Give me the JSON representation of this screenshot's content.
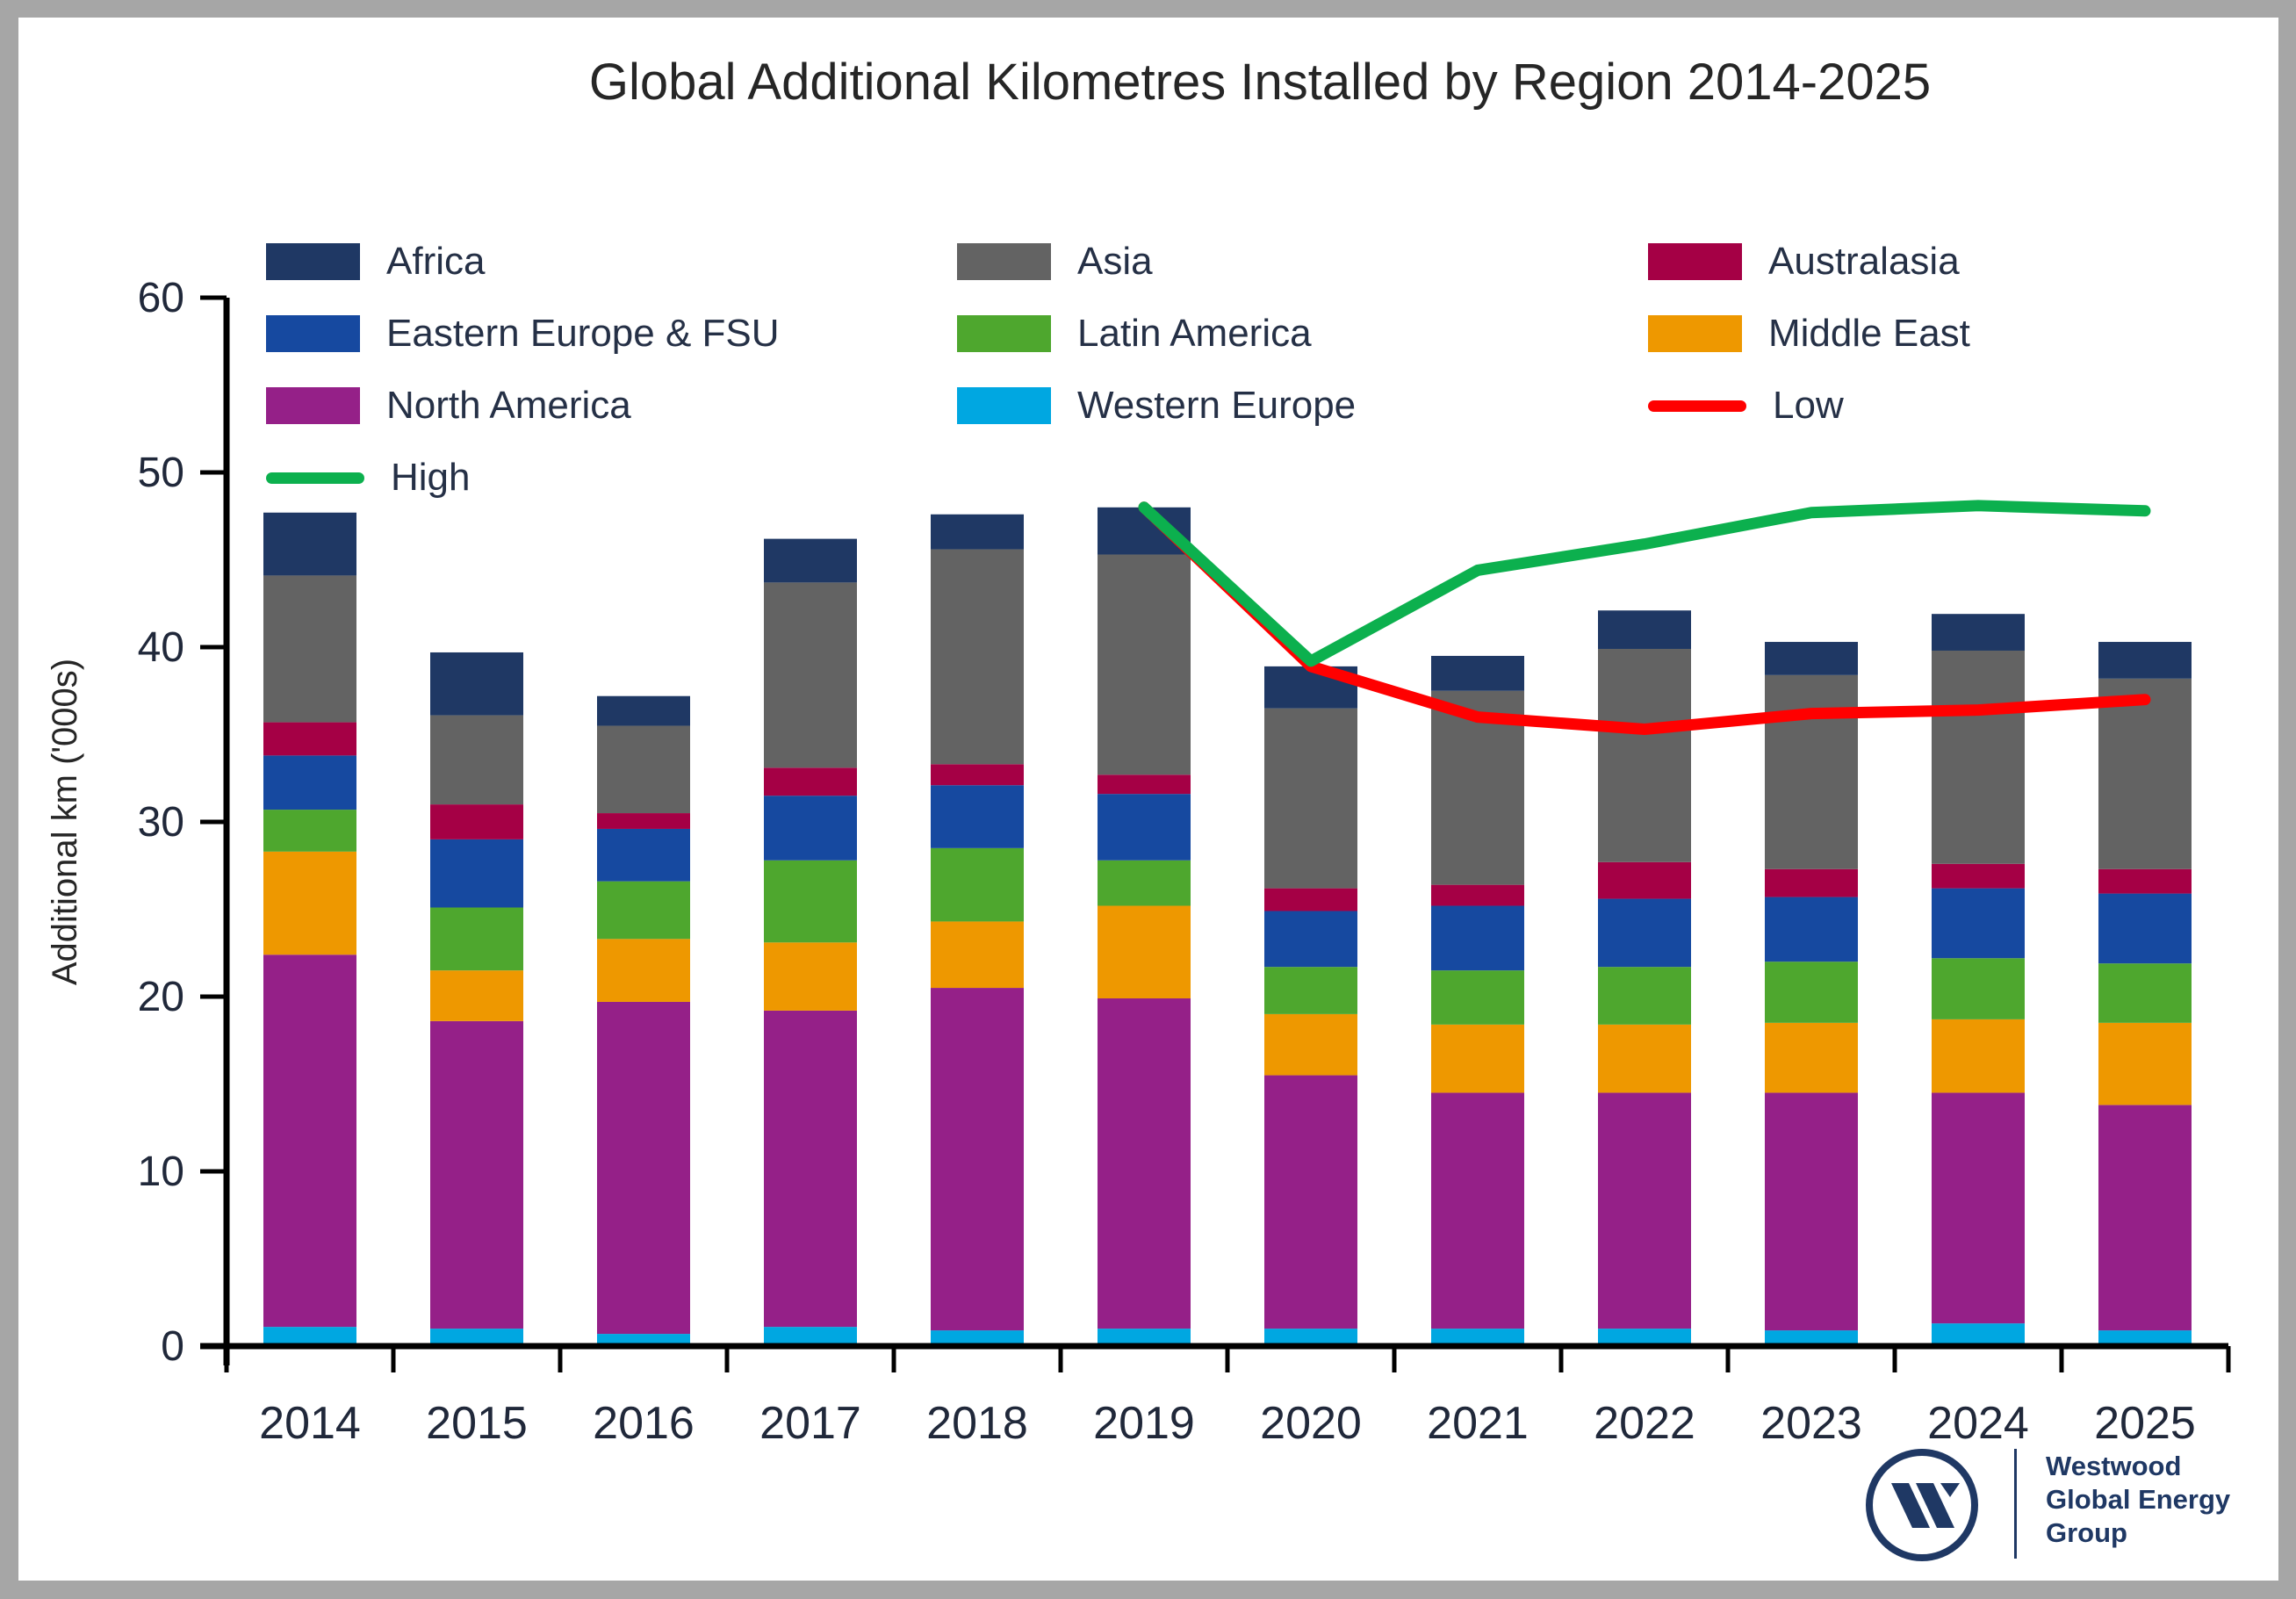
{
  "title": "Global Additional Kilometres Installed by Region 2014-2025",
  "ylabel": "Additional km ('000s)",
  "logo": {
    "line1": "Westwood",
    "line2": "Global Energy",
    "line3": "Group",
    "color": "#1F3864"
  },
  "legend": {
    "items": [
      {
        "label": "Africa",
        "type": "box",
        "color": "#1F3864",
        "row": 0,
        "col": 0
      },
      {
        "label": "Asia",
        "type": "box",
        "color": "#636363",
        "row": 0,
        "col": 1
      },
      {
        "label": "Australasia",
        "type": "box",
        "color": "#A50045",
        "row": 0,
        "col": 2
      },
      {
        "label": "Eastern Europe & FSU",
        "type": "box",
        "color": "#1649A0",
        "row": 1,
        "col": 0
      },
      {
        "label": "Latin America",
        "type": "box",
        "color": "#4EA72E",
        "row": 1,
        "col": 1
      },
      {
        "label": "Middle East",
        "type": "box",
        "color": "#EE9800",
        "row": 1,
        "col": 2
      },
      {
        "label": "North America",
        "type": "box",
        "color": "#952088",
        "row": 2,
        "col": 0
      },
      {
        "label": "Western Europe",
        "type": "box",
        "color": "#00A7E1",
        "row": 2,
        "col": 1
      },
      {
        "label": "Low",
        "type": "line",
        "color": "#FF0000",
        "row": 2,
        "col": 2
      },
      {
        "label": "High",
        "type": "line",
        "color": "#0CB04E",
        "row": 3,
        "col": 0
      }
    ]
  },
  "chart_data": {
    "type": "bar",
    "subtype": "stacked-bar-with-lines",
    "title": "Global Additional Kilometres Installed by Region 2014-2025",
    "xlabel": "",
    "ylabel": "Additional km ('000s)",
    "ylim": [
      0,
      60
    ],
    "yticks": [
      0,
      10,
      20,
      30,
      40,
      50,
      60
    ],
    "grid": false,
    "legend_position": "top",
    "categories": [
      "2014",
      "2015",
      "2016",
      "2017",
      "2018",
      "2019",
      "2020",
      "2021",
      "2022",
      "2023",
      "2024",
      "2025"
    ],
    "stack_order_bottom_to_top": [
      "Western Europe",
      "North America",
      "Middle East",
      "Latin America",
      "Eastern Europe & FSU",
      "Australasia",
      "Asia",
      "Africa"
    ],
    "series": [
      {
        "name": "Western Europe",
        "color": "#00A7E1",
        "values": [
          1.1,
          1.0,
          0.7,
          1.1,
          0.9,
          1.0,
          1.0,
          1.0,
          1.0,
          0.9,
          1.3,
          0.9
        ]
      },
      {
        "name": "North America",
        "color": "#952088",
        "values": [
          21.3,
          17.6,
          19.0,
          18.1,
          19.6,
          18.9,
          14.5,
          13.5,
          13.5,
          13.6,
          13.2,
          12.9
        ]
      },
      {
        "name": "Middle East",
        "color": "#EE9800",
        "values": [
          5.9,
          2.9,
          3.6,
          3.9,
          3.8,
          5.3,
          3.5,
          3.9,
          3.9,
          4.0,
          4.2,
          4.7
        ]
      },
      {
        "name": "Latin America",
        "color": "#4EA72E",
        "values": [
          2.4,
          3.6,
          3.3,
          4.7,
          4.2,
          2.6,
          2.7,
          3.1,
          3.3,
          3.5,
          3.5,
          3.4
        ]
      },
      {
        "name": "Eastern Europe & FSU",
        "color": "#1649A0",
        "values": [
          3.1,
          3.9,
          3.0,
          3.7,
          3.6,
          3.8,
          3.2,
          3.7,
          3.9,
          3.7,
          4.0,
          4.0
        ]
      },
      {
        "name": "Australasia",
        "color": "#A50045",
        "values": [
          1.9,
          2.0,
          0.9,
          1.6,
          1.2,
          1.1,
          1.3,
          1.2,
          2.1,
          1.6,
          1.4,
          1.4
        ]
      },
      {
        "name": "Asia",
        "color": "#636363",
        "values": [
          8.4,
          5.1,
          5.0,
          10.6,
          12.3,
          12.6,
          10.3,
          11.1,
          12.2,
          11.1,
          12.2,
          10.9
        ]
      },
      {
        "name": "Africa",
        "color": "#1F3864",
        "values": [
          3.6,
          3.6,
          1.7,
          2.5,
          2.0,
          2.7,
          2.4,
          2.0,
          2.2,
          1.9,
          2.1,
          2.1
        ]
      }
    ],
    "totals": [
      47.7,
      39.7,
      37.2,
      46.2,
      47.6,
      48.0,
      38.9,
      39.5,
      42.1,
      40.3,
      41.9,
      40.3
    ],
    "lines": [
      {
        "name": "Low",
        "color": "#FF0000",
        "x": [
          "2019",
          "2020",
          "2021",
          "2022",
          "2023",
          "2024",
          "2025"
        ],
        "values": [
          48.0,
          38.9,
          36.0,
          35.3,
          36.2,
          36.4,
          37.0
        ]
      },
      {
        "name": "High",
        "color": "#0CB04E",
        "x": [
          "2019",
          "2020",
          "2021",
          "2022",
          "2023",
          "2024",
          "2025"
        ],
        "values": [
          48.0,
          39.2,
          44.4,
          45.9,
          47.7,
          48.1,
          47.8
        ]
      }
    ]
  }
}
